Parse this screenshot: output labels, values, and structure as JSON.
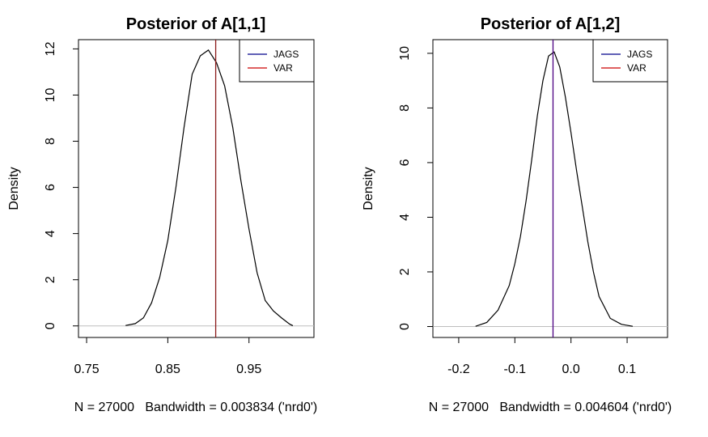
{
  "chart_data": [
    {
      "type": "line",
      "title": "Posterior of A[1,1]",
      "ylabel": "Density",
      "xlabel": "N = 27000   Bandwidth = 0.003834 ('nrd0')",
      "xlim": [
        0.74,
        1.03
      ],
      "ylim": [
        -0.5,
        12.4
      ],
      "xticks": [
        0.75,
        0.85,
        0.95
      ],
      "xtick_labels": [
        "0.75",
        "0.85",
        "0.95"
      ],
      "yticks": [
        0,
        2,
        4,
        6,
        8,
        10,
        12
      ],
      "ytick_labels": [
        "0",
        "2",
        "4",
        "6",
        "8",
        "10",
        "12"
      ],
      "legend": {
        "position": "top-right",
        "entries": [
          {
            "name": "JAGS",
            "color": "#00008b"
          },
          {
            "name": "VAR",
            "color": "#cc0000"
          }
        ]
      },
      "series": [
        {
          "name": "JAGS",
          "color": "#000000",
          "x": [
            0.798,
            0.81,
            0.82,
            0.83,
            0.84,
            0.85,
            0.86,
            0.87,
            0.88,
            0.89,
            0.9,
            0.91,
            0.92,
            0.93,
            0.94,
            0.95,
            0.96,
            0.97,
            0.98,
            0.99,
            1.0,
            1.004
          ],
          "y": [
            0.02,
            0.1,
            0.35,
            1.0,
            2.1,
            3.7,
            6.0,
            8.6,
            10.9,
            11.7,
            11.95,
            11.4,
            10.4,
            8.6,
            6.3,
            4.2,
            2.3,
            1.1,
            0.65,
            0.35,
            0.08,
            0.01
          ]
        }
      ],
      "vline": {
        "name": "VAR",
        "x": 0.909,
        "color": "#8b1a1a"
      },
      "baseline": 0
    },
    {
      "type": "line",
      "title": "Posterior of A[1,2]",
      "ylabel": "Density",
      "xlabel": "N = 27000   Bandwidth = 0.004604 ('nrd0')",
      "xlim": [
        -0.246,
        0.172
      ],
      "ylim": [
        -0.4,
        10.5
      ],
      "xticks": [
        -0.2,
        -0.1,
        0.0,
        0.1
      ],
      "xtick_labels": [
        "-0.2",
        "-0.1",
        "0.0",
        "0.1"
      ],
      "yticks": [
        0,
        2,
        4,
        6,
        8,
        10
      ],
      "ytick_labels": [
        "0",
        "2",
        "4",
        "6",
        "8",
        "10"
      ],
      "legend": {
        "position": "top-right",
        "entries": [
          {
            "name": "JAGS",
            "color": "#00008b"
          },
          {
            "name": "VAR",
            "color": "#cc0000"
          }
        ]
      },
      "series": [
        {
          "name": "JAGS",
          "color": "#000000",
          "x": [
            -0.17,
            -0.15,
            -0.13,
            -0.11,
            -0.1,
            -0.09,
            -0.08,
            -0.07,
            -0.06,
            -0.05,
            -0.04,
            -0.03,
            -0.02,
            -0.01,
            0.0,
            0.01,
            0.02,
            0.03,
            0.04,
            0.05,
            0.07,
            0.09,
            0.11
          ],
          "y": [
            0.01,
            0.15,
            0.6,
            1.5,
            2.3,
            3.3,
            4.6,
            6.1,
            7.7,
            9.0,
            9.9,
            10.05,
            9.5,
            8.4,
            7.1,
            5.7,
            4.4,
            3.1,
            2.0,
            1.1,
            0.3,
            0.08,
            0.01
          ]
        }
      ],
      "vline": {
        "name": "VAR",
        "x": -0.032,
        "color": "#4b0082"
      },
      "baseline": 0
    }
  ]
}
